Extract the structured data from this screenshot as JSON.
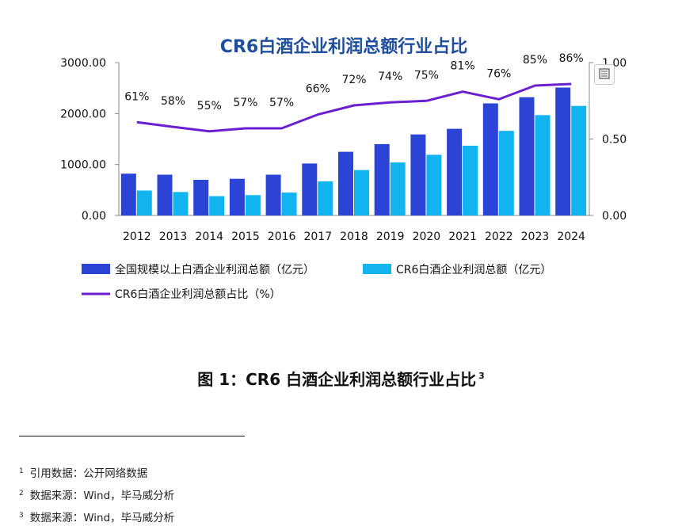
{
  "chart_data": {
    "type": "bar+line",
    "title": "CR6白酒企业利润总额行业占比",
    "categories": [
      "2012",
      "2013",
      "2014",
      "2015",
      "2016",
      "2017",
      "2018",
      "2019",
      "2020",
      "2021",
      "2022",
      "2023",
      "2024"
    ],
    "series": [
      {
        "name": "全国规模以上白酒企业利润总额（亿元）",
        "type": "bar",
        "axis": "left",
        "color": "#2b44d6",
        "values": [
          820,
          800,
          700,
          720,
          800,
          1020,
          1250,
          1400,
          1590,
          1700,
          2200,
          2320,
          2510
        ]
      },
      {
        "name": "CR6白酒企业利润总额（亿元）",
        "type": "bar",
        "axis": "left",
        "color": "#12b4f0",
        "values": [
          490,
          460,
          380,
          400,
          450,
          670,
          890,
          1040,
          1190,
          1370,
          1660,
          1970,
          2150
        ]
      },
      {
        "name": "CR6白酒企业利润总额占比（%）",
        "type": "line",
        "axis": "right",
        "color": "#6a1fd0",
        "values": [
          0.61,
          0.58,
          0.55,
          0.57,
          0.57,
          0.66,
          0.72,
          0.74,
          0.75,
          0.81,
          0.76,
          0.85,
          0.86
        ],
        "labels": [
          "61%",
          "58%",
          "55%",
          "57%",
          "57%",
          "66%",
          "72%",
          "74%",
          "75%",
          "81%",
          "76%",
          "85%",
          "86%"
        ]
      }
    ],
    "y_left": {
      "range": [
        0,
        3000
      ],
      "ticks": [
        "0.00",
        "1000.00",
        "2000.00",
        "3000.00"
      ]
    },
    "y_right": {
      "range": [
        0,
        1
      ],
      "ticks": [
        "0.00",
        "0.50",
        "1.00"
      ]
    },
    "grid": false,
    "legend_position": "bottom"
  },
  "caption": {
    "text": "图 1：CR6 白酒企业利润总额行业占比",
    "sup": "3"
  },
  "footnotes": [
    {
      "num": "1",
      "text": "引用数据：公开网络数据"
    },
    {
      "num": "2",
      "text": "数据来源：Wind，毕马威分析"
    },
    {
      "num": "3",
      "text": "数据来源：Wind，毕马威分析"
    }
  ],
  "icons": {
    "expand": "expand-icon"
  }
}
